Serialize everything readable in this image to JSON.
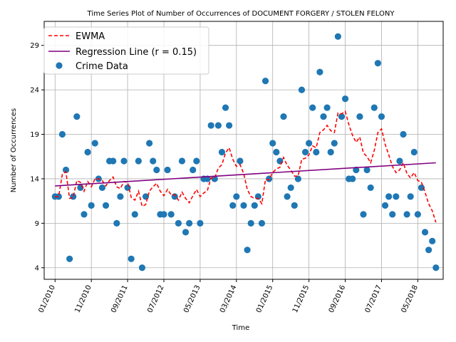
{
  "chart_data": {
    "type": "scatter",
    "title": "Time Series Plot of Number of Occurrences of DOCUMENT FORGERY / STOLEN FELONY",
    "xlabel": "Time",
    "ylabel": "Number of Occurrences",
    "grid": true,
    "legend_position": "top-left",
    "x_ticks": [
      "01/2010",
      "11/2010",
      "09/2011",
      "07/2012",
      "05/2013",
      "03/2014",
      "01/2015",
      "11/2015",
      "09/2016",
      "07/2017",
      "05/2018"
    ],
    "y_ticks": [
      4,
      9,
      14,
      19,
      24,
      29
    ],
    "ylim": [
      2.7,
      31.7
    ],
    "xlim": [
      "2009-10",
      "2018-12"
    ],
    "series": [
      {
        "name": "Crime Data",
        "kind": "scatter",
        "color": "#1f77b4",
        "x": [
          "2010-01",
          "2010-02",
          "2010-03",
          "2010-04",
          "2010-05",
          "2010-06",
          "2010-07",
          "2010-08",
          "2010-09",
          "2010-10",
          "2010-11",
          "2010-12",
          "2011-01",
          "2011-02",
          "2011-03",
          "2011-04",
          "2011-05",
          "2011-06",
          "2011-07",
          "2011-08",
          "2011-09",
          "2011-10",
          "2011-11",
          "2011-12",
          "2012-01",
          "2012-02",
          "2012-03",
          "2012-04",
          "2012-05",
          "2012-06",
          "2012-07",
          "2012-08",
          "2012-09",
          "2012-10",
          "2012-11",
          "2012-12",
          "2013-01",
          "2013-02",
          "2013-03",
          "2013-04",
          "2013-05",
          "2013-06",
          "2013-07",
          "2013-08",
          "2013-09",
          "2013-10",
          "2013-11",
          "2013-12",
          "2014-01",
          "2014-02",
          "2014-03",
          "2014-04",
          "2014-05",
          "2014-06",
          "2014-07",
          "2014-08",
          "2014-09",
          "2014-10",
          "2014-11",
          "2014-12",
          "2015-01",
          "2015-02",
          "2015-03",
          "2015-04",
          "2015-05",
          "2015-06",
          "2015-07",
          "2015-08",
          "2015-09",
          "2015-10",
          "2015-11",
          "2015-12",
          "2016-01",
          "2016-02",
          "2016-03",
          "2016-04",
          "2016-05",
          "2016-06",
          "2016-07",
          "2016-08",
          "2016-09",
          "2016-10",
          "2016-11",
          "2016-12",
          "2017-01",
          "2017-02",
          "2017-03",
          "2017-04",
          "2017-05",
          "2017-06",
          "2017-07",
          "2017-08",
          "2017-09",
          "2017-10",
          "2017-11",
          "2017-12",
          "2018-01",
          "2018-02",
          "2018-03",
          "2018-04",
          "2018-05",
          "2018-06",
          "2018-07",
          "2018-08",
          "2018-09",
          "2018-10"
        ],
        "y": [
          12,
          12,
          19,
          15,
          5,
          12,
          21,
          13,
          10,
          17,
          11,
          18,
          14,
          13,
          11,
          16,
          16,
          9,
          12,
          16,
          13,
          5,
          10,
          16,
          4,
          12,
          18,
          16,
          15,
          10,
          10,
          15,
          10,
          12,
          9,
          16,
          8,
          9,
          15,
          16,
          9,
          14,
          14,
          20,
          14,
          20,
          17,
          22,
          20,
          11,
          12,
          16,
          11,
          6,
          9,
          11,
          12,
          9,
          25,
          14,
          18,
          17,
          16,
          21,
          12,
          13,
          11,
          14,
          24,
          17,
          18,
          22,
          17,
          26,
          21,
          22,
          17,
          18,
          30,
          21,
          23,
          14,
          14,
          15,
          21,
          10,
          15,
          13,
          22,
          27,
          21,
          11,
          12,
          10,
          12,
          16,
          19,
          10,
          12,
          17,
          10,
          13,
          8,
          6,
          7,
          4
        ]
      },
      {
        "name": "EWMA",
        "kind": "line",
        "style": "dashed",
        "color": "#ff0000",
        "x": [
          "2010-01",
          "2010-02",
          "2010-03",
          "2010-04",
          "2010-05",
          "2010-06",
          "2010-07",
          "2010-08",
          "2010-09",
          "2010-10",
          "2010-11",
          "2010-12",
          "2011-01",
          "2011-02",
          "2011-03",
          "2011-04",
          "2011-05",
          "2011-06",
          "2011-07",
          "2011-08",
          "2011-09",
          "2011-10",
          "2011-11",
          "2011-12",
          "2012-01",
          "2012-02",
          "2012-03",
          "2012-04",
          "2012-05",
          "2012-06",
          "2012-07",
          "2012-08",
          "2012-09",
          "2012-10",
          "2012-11",
          "2012-12",
          "2013-01",
          "2013-02",
          "2013-03",
          "2013-04",
          "2013-05",
          "2013-06",
          "2013-07",
          "2013-08",
          "2013-09",
          "2013-10",
          "2013-11",
          "2013-12",
          "2014-01",
          "2014-02",
          "2014-03",
          "2014-04",
          "2014-05",
          "2014-06",
          "2014-07",
          "2014-08",
          "2014-09",
          "2014-10",
          "2014-11",
          "2014-12",
          "2015-01",
          "2015-02",
          "2015-03",
          "2015-04",
          "2015-05",
          "2015-06",
          "2015-07",
          "2015-08",
          "2015-09",
          "2015-10",
          "2015-11",
          "2015-12",
          "2016-01",
          "2016-02",
          "2016-03",
          "2016-04",
          "2016-05",
          "2016-06",
          "2016-07",
          "2016-08",
          "2016-09",
          "2016-10",
          "2016-11",
          "2016-12",
          "2017-01",
          "2017-02",
          "2017-03",
          "2017-04",
          "2017-05",
          "2017-06",
          "2017-07",
          "2017-08",
          "2017-09",
          "2017-10",
          "2017-11",
          "2017-12",
          "2018-01",
          "2018-02",
          "2018-03",
          "2018-04",
          "2018-05",
          "2018-06",
          "2018-07",
          "2018-08",
          "2018-09",
          "2018-10"
        ],
        "y": [
          12,
          12,
          14.5,
          14.8,
          11.8,
          11.9,
          13.8,
          13.6,
          12.6,
          13.7,
          13.1,
          14.0,
          14.0,
          13.8,
          13.2,
          13.8,
          14.2,
          13.1,
          12.9,
          13.7,
          13.6,
          11.9,
          11.6,
          12.6,
          10.9,
          11.1,
          12.6,
          13.1,
          13.5,
          12.6,
          12.1,
          12.8,
          12.2,
          12.2,
          11.6,
          12.5,
          11.8,
          11.3,
          12.1,
          12.8,
          12.0,
          12.4,
          12.7,
          14.1,
          14.1,
          15.2,
          15.6,
          16.9,
          17.5,
          16.2,
          15.4,
          15.6,
          14.6,
          12.8,
          12.0,
          11.8,
          11.8,
          11.2,
          13.9,
          13.9,
          14.7,
          15.1,
          15.3,
          16.4,
          15.5,
          15.0,
          14.3,
          14.3,
          16.2,
          16.3,
          16.7,
          17.7,
          17.5,
          19.2,
          19.5,
          20.0,
          19.4,
          19.2,
          21.4,
          21.3,
          21.6,
          20.1,
          18.9,
          18.1,
          18.7,
          16.9,
          16.5,
          15.8,
          17.2,
          19.2,
          19.6,
          17.9,
          16.7,
          15.4,
          14.7,
          15.0,
          15.8,
          14.6,
          14.1,
          14.7,
          13.8,
          13.6,
          12.5,
          11.2,
          10.4,
          9.1
        ]
      },
      {
        "name": "Regression Line (r = 0.15)",
        "kind": "line",
        "color": "#800080",
        "x": [
          "2010-01",
          "2018-10"
        ],
        "y": [
          13.2,
          15.8
        ]
      }
    ]
  }
}
